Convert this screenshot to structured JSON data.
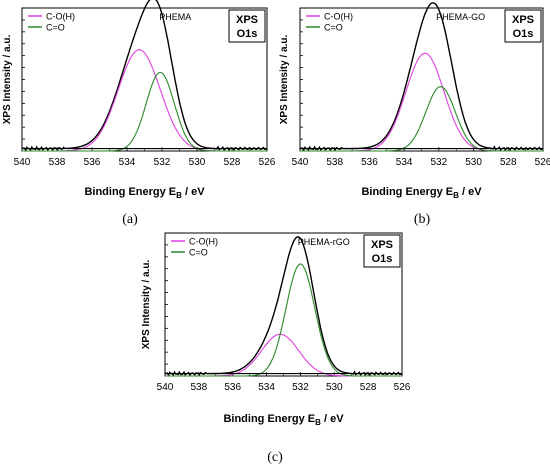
{
  "chart_data": [
    {
      "type": "line",
      "panel_label": "(a)",
      "sample": "PHEMA",
      "box_line1": "XPS",
      "box_line2": "O1s",
      "xlabel": "Binding Energy",
      "xlabel_sub_main": "E",
      "xlabel_sub": "B",
      "xlabel_unit": " / eV",
      "ylabel": "XPS Intensity / a.u.",
      "xlim": [
        540,
        526
      ],
      "x_ticks": [
        "540",
        "538",
        "536",
        "534",
        "532",
        "530",
        "528",
        "526"
      ],
      "x_reversed": true,
      "ylim": [
        0,
        1.2
      ],
      "legend": [
        {
          "name": "C-O(H)",
          "color": "#e040e0"
        },
        {
          "name": "C=O",
          "color": "#2a8a2a"
        }
      ],
      "legend_position": "top-left",
      "series": [
        {
          "name": "envelope",
          "color": "#000000",
          "kind": "envelope",
          "peaks": [
            [
              533.3,
              0.85,
              1.2
            ],
            [
              532.1,
              0.66,
              0.8
            ]
          ],
          "baseline": 0.02
        },
        {
          "name": "C-O(H)",
          "color": "#e040e0",
          "kind": "peak",
          "center": 533.3,
          "height": 0.85,
          "sigma": 1.2
        },
        {
          "name": "C=O",
          "color": "#2a8a2a",
          "kind": "peak",
          "center": 532.1,
          "height": 0.66,
          "sigma": 0.8
        },
        {
          "name": "background",
          "color": "#000000",
          "kind": "baseline",
          "baseline": 0.02
        }
      ]
    },
    {
      "type": "line",
      "panel_label": "(b)",
      "sample": "PHEMA-GO",
      "box_line1": "XPS",
      "box_line2": "O1s",
      "xlabel": "Binding Energy",
      "xlabel_sub_main": "E",
      "xlabel_sub": "B",
      "xlabel_unit": " / eV",
      "ylabel": "XPS Intensity / a.u.",
      "xlim": [
        540,
        526
      ],
      "x_ticks": [
        "540",
        "538",
        "536",
        "534",
        "532",
        "530",
        "528",
        "526"
      ],
      "x_reversed": true,
      "ylim": [
        0,
        1.2
      ],
      "legend": [
        {
          "name": "C-O(H)",
          "color": "#e040e0"
        },
        {
          "name": "C=O",
          "color": "#2a8a2a"
        }
      ],
      "legend_position": "top-left",
      "series": [
        {
          "name": "envelope",
          "color": "#000000",
          "kind": "envelope",
          "peaks": [
            [
              532.8,
              0.82,
              1.1
            ],
            [
              531.9,
              0.54,
              0.85
            ]
          ],
          "baseline": 0.02
        },
        {
          "name": "C-O(H)",
          "color": "#e040e0",
          "kind": "peak",
          "center": 532.8,
          "height": 0.82,
          "sigma": 1.1
        },
        {
          "name": "C=O",
          "color": "#2a8a2a",
          "kind": "peak",
          "center": 531.9,
          "height": 0.54,
          "sigma": 0.85
        },
        {
          "name": "background",
          "color": "#000000",
          "kind": "baseline",
          "baseline": 0.02
        }
      ]
    },
    {
      "type": "line",
      "panel_label": "(c)",
      "sample": "PHEMA-rGO",
      "box_line1": "XPS",
      "box_line2": "O1s",
      "xlabel": "Binding Energy",
      "xlabel_sub_main": "E",
      "xlabel_sub": "B",
      "xlabel_unit": " / eV",
      "ylabel": "XPS Intensity / a.u.",
      "xlim": [
        540,
        526
      ],
      "x_ticks": [
        "540",
        "538",
        "536",
        "534",
        "532",
        "530",
        "528",
        "526"
      ],
      "x_reversed": true,
      "ylim": [
        0,
        1.2
      ],
      "legend": [
        {
          "name": "C-O(H)",
          "color": "#e040e0"
        },
        {
          "name": "C=O",
          "color": "#2a8a2a"
        }
      ],
      "legend_position": "top-left",
      "series": [
        {
          "name": "envelope",
          "color": "#000000",
          "kind": "envelope",
          "peaks": [
            [
              533.2,
              0.35,
              1.1
            ],
            [
              532.0,
              0.94,
              0.85
            ]
          ],
          "baseline": 0.02
        },
        {
          "name": "C-O(H)",
          "color": "#e040e0",
          "kind": "peak",
          "center": 533.2,
          "height": 0.35,
          "sigma": 1.1
        },
        {
          "name": "C=O",
          "color": "#2a8a2a",
          "kind": "peak",
          "center": 532.0,
          "height": 0.94,
          "sigma": 0.85
        },
        {
          "name": "background",
          "color": "#000000",
          "kind": "baseline",
          "baseline": 0.02
        }
      ]
    }
  ]
}
